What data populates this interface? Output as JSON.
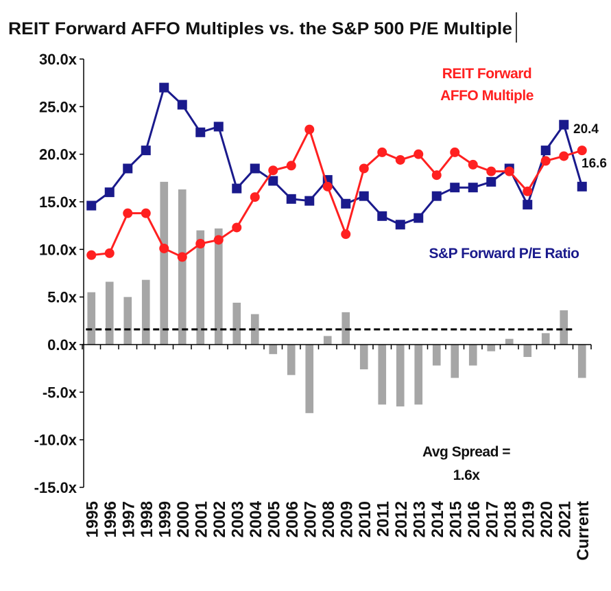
{
  "chart_data": {
    "type": "combo",
    "title": "REIT Forward AFFO Multiples vs. the S&P 500 P/E Multiple",
    "categories": [
      "1995",
      "1996",
      "1997",
      "1998",
      "1999",
      "2000",
      "2001",
      "2002",
      "2003",
      "2004",
      "2005",
      "2006",
      "2007",
      "2008",
      "2009",
      "2010",
      "2011",
      "2012",
      "2013",
      "2014",
      "2015",
      "2016",
      "2017",
      "2018",
      "2019",
      "2020",
      "2021",
      "Current"
    ],
    "series": [
      {
        "type": "bar",
        "color": "#a6a6a6",
        "values": [
          5.5,
          6.6,
          5.0,
          6.8,
          17.1,
          16.3,
          12.0,
          12.2,
          4.4,
          3.2,
          -1.0,
          -3.2,
          -7.2,
          0.9,
          3.4,
          -2.6,
          -6.3,
          -6.5,
          -6.3,
          -2.2,
          -3.5,
          -2.2,
          -0.7,
          0.6,
          -1.3,
          1.2,
          3.6,
          -3.5
        ]
      },
      {
        "type": "line",
        "name": "S&P Forward P/E Ratio",
        "color": "#1a1a8c",
        "marker": "square",
        "values": [
          14.6,
          16.0,
          18.5,
          20.4,
          27.0,
          25.2,
          22.3,
          22.9,
          16.4,
          18.5,
          17.2,
          15.3,
          15.1,
          17.3,
          14.8,
          15.6,
          13.5,
          12.6,
          13.3,
          15.6,
          16.5,
          16.5,
          17.1,
          18.5,
          14.7,
          20.4,
          23.1,
          16.6
        ]
      },
      {
        "type": "line",
        "name": "REIT Forward AFFO Multiple",
        "color": "#ff2020",
        "marker": "circle",
        "values": [
          9.4,
          9.6,
          13.8,
          13.8,
          10.1,
          9.2,
          10.6,
          11.0,
          12.3,
          15.5,
          18.3,
          18.8,
          22.6,
          16.6,
          11.6,
          18.5,
          20.2,
          19.4,
          20.0,
          17.8,
          20.2,
          18.9,
          18.2,
          18.2,
          16.1,
          19.3,
          19.8,
          20.4
        ]
      }
    ],
    "point_labels": [
      "20.4",
      "16.6"
    ],
    "average": {
      "value": 1.6,
      "label": "1.6x"
    },
    "average_text": "Avg Spread =",
    "ylim": [
      -15,
      30
    ],
    "yticks": [
      {
        "value": 30,
        "label": "30.0x"
      },
      {
        "value": 25,
        "label": "25.0x"
      },
      {
        "value": 20,
        "label": "20.0x"
      },
      {
        "value": 15,
        "label": "15.0x"
      },
      {
        "value": 10,
        "label": "10.0x"
      },
      {
        "value": 5,
        "label": "5.0x"
      },
      {
        "value": 0,
        "label": "0.0x"
      },
      {
        "value": -5,
        "label": "-5.0x"
      },
      {
        "value": -10,
        "label": "-10.0x"
      },
      {
        "value": -15,
        "label": "-15.0x"
      }
    ]
  }
}
